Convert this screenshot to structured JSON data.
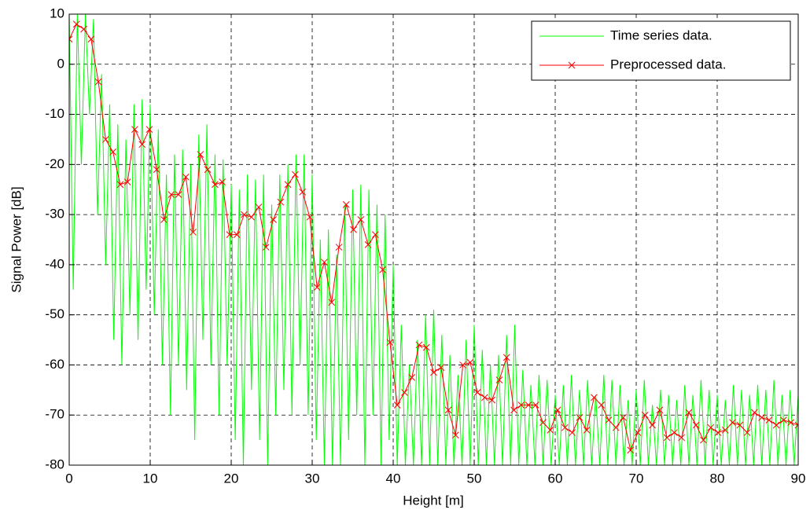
{
  "chart_data": {
    "type": "line",
    "xlabel": "Height [m]",
    "ylabel": "Signal Power [dB]",
    "xlim": [
      0,
      90
    ],
    "ylim": [
      -80,
      10
    ],
    "xticks": [
      0,
      10,
      20,
      30,
      40,
      50,
      60,
      70,
      80,
      90
    ],
    "yticks": [
      -80,
      -70,
      -60,
      -50,
      -40,
      -30,
      -20,
      -10,
      0,
      10
    ],
    "grid": true,
    "legend": "top-right",
    "series": [
      {
        "name": "Time series data.",
        "color": "#00ff00",
        "marker": "none",
        "x": [
          0,
          0.5,
          1,
          1.5,
          2,
          2.5,
          3,
          3.5,
          4,
          4.5,
          5,
          5.5,
          6,
          6.5,
          7,
          7.5,
          8,
          8.5,
          9,
          9.5,
          10,
          10.5,
          11,
          11.5,
          12,
          12.5,
          13,
          13.5,
          14,
          14.5,
          15,
          15.5,
          16,
          16.5,
          17,
          17.5,
          18,
          18.5,
          19,
          19.5,
          20,
          20.5,
          21,
          21.5,
          22,
          22.5,
          23,
          23.5,
          24,
          24.5,
          25,
          25.5,
          26,
          26.5,
          27,
          27.5,
          28,
          28.5,
          29,
          29.5,
          30,
          30.5,
          31,
          31.5,
          32,
          32.5,
          33,
          33.5,
          34,
          34.5,
          35,
          35.5,
          36,
          36.5,
          37,
          37.5,
          38,
          38.5,
          39,
          39.5,
          40,
          40.5,
          41,
          41.5,
          42,
          42.5,
          43,
          43.5,
          44,
          44.5,
          45,
          45.5,
          46,
          46.5,
          47,
          47.5,
          48,
          48.5,
          49,
          49.5,
          50,
          50.5,
          51,
          51.5,
          52,
          52.5,
          53,
          53.5,
          54,
          54.5,
          55,
          55.5,
          56,
          56.5,
          57,
          57.5,
          58,
          58.5,
          59,
          59.5,
          60,
          60.5,
          61,
          61.5,
          62,
          62.5,
          63,
          63.5,
          64,
          64.5,
          65,
          65.5,
          66,
          66.5,
          67,
          67.5,
          68,
          68.5,
          69,
          69.5,
          70,
          70.5,
          71,
          71.5,
          72,
          72.5,
          73,
          73.5,
          74,
          74.5,
          75,
          75.5,
          76,
          76.5,
          77,
          77.5,
          78,
          78.5,
          79,
          79.5,
          80,
          80.5,
          81,
          81.5,
          82,
          82.5,
          83,
          83.5,
          84,
          84.5,
          85,
          85.5,
          86,
          86.5,
          87,
          87.5,
          88,
          88.5,
          89,
          89.5,
          90
        ],
        "values": [
          10,
          -45,
          10,
          -20,
          10,
          -10,
          9,
          -30,
          -2,
          -40,
          -8,
          -55,
          -12,
          -60,
          -15,
          -50,
          -8,
          -55,
          -7,
          -45,
          -8,
          -50,
          -13,
          -60,
          -22,
          -70,
          -18,
          -60,
          -17,
          -65,
          -20,
          -75,
          -14,
          -55,
          -12,
          -60,
          -18,
          -70,
          -19,
          -60,
          -24,
          -75,
          -25,
          -80,
          -22,
          -65,
          -23,
          -75,
          -22,
          -80,
          -28,
          -70,
          -22,
          -65,
          -20,
          -70,
          -18,
          -60,
          -18,
          -70,
          -22,
          -75,
          -35,
          -80,
          -33,
          -80,
          -38,
          -80,
          -28,
          -75,
          -25,
          -70,
          -24,
          -80,
          -25,
          -70,
          -28,
          -80,
          -30,
          -75,
          -40,
          -80,
          -52,
          -80,
          -60,
          -80,
          -55,
          -80,
          -50,
          -80,
          -49,
          -80,
          -54,
          -80,
          -58,
          -80,
          -62,
          -80,
          -55,
          -80,
          -52,
          -80,
          -57,
          -80,
          -60,
          -80,
          -58,
          -80,
          -54,
          -80,
          -52,
          -80,
          -61,
          -80,
          -64,
          -80,
          -62,
          -80,
          -63,
          -80,
          -66,
          -80,
          -64,
          -80,
          -62,
          -80,
          -65,
          -80,
          -63,
          -80,
          -66,
          -80,
          -62,
          -80,
          -63,
          -80,
          -64,
          -80,
          -67,
          -80,
          -65,
          -80,
          -63,
          -80,
          -68,
          -80,
          -65,
          -80,
          -66,
          -80,
          -67,
          -80,
          -64,
          -80,
          -66,
          -80,
          -63,
          -80,
          -65,
          -80,
          -66,
          -80,
          -67,
          -80,
          -64,
          -80,
          -65,
          -80,
          -66,
          -80,
          -64,
          -80,
          -65,
          -80,
          -63,
          -80,
          -66,
          -80,
          -65,
          -80,
          -66
        ]
      },
      {
        "name": "Preprocessed data.",
        "color": "#ff0000",
        "marker": "x",
        "x": [
          0,
          0.9,
          1.8,
          2.7,
          3.6,
          4.5,
          5.4,
          6.3,
          7.2,
          8.1,
          9,
          9.9,
          10.8,
          11.7,
          12.6,
          13.5,
          14.4,
          15.3,
          16.2,
          17.1,
          18,
          18.9,
          19.8,
          20.7,
          21.6,
          22.5,
          23.4,
          24.3,
          25.2,
          26.1,
          27,
          27.9,
          28.8,
          29.7,
          30.6,
          31.5,
          32.4,
          33.3,
          34.2,
          35.1,
          36,
          36.9,
          37.8,
          38.7,
          39.6,
          40.5,
          41.4,
          42.3,
          43.2,
          44.1,
          45,
          45.9,
          46.8,
          47.7,
          48.6,
          49.5,
          50.4,
          51.3,
          52.2,
          53.1,
          54,
          54.9,
          55.8,
          56.7,
          57.6,
          58.5,
          59.4,
          60.3,
          61.2,
          62.1,
          63,
          63.9,
          64.8,
          65.7,
          66.6,
          67.5,
          68.4,
          69.3,
          70.2,
          71.1,
          72,
          72.9,
          73.8,
          74.7,
          75.6,
          76.5,
          77.4,
          78.3,
          79.2,
          80.1,
          81,
          81.9,
          82.8,
          83.7,
          84.6,
          85.5,
          86.4,
          87.3,
          88.2,
          89.1,
          90
        ],
        "values": [
          5,
          8,
          7,
          5,
          -3.5,
          -15,
          -17.5,
          -24,
          -23.5,
          -13,
          -16,
          -13,
          -21,
          -31,
          -26,
          -26,
          -22.5,
          -33.5,
          -18,
          -21,
          -24,
          -23.5,
          -34,
          -34,
          -30,
          -30.5,
          -28.5,
          -36.5,
          -31,
          -27.5,
          -24,
          -22,
          -25.5,
          -30.5,
          -44.5,
          -39.5,
          -47.5,
          -36.5,
          -28,
          -33,
          -31,
          -36,
          -34,
          -41,
          -55.5,
          -68,
          -65.5,
          -62.5,
          -56,
          -56.5,
          -61.5,
          -60.5,
          -69,
          -74,
          -60,
          -59.5,
          -65.5,
          -66.5,
          -67,
          -63,
          -58.5,
          -69,
          -68,
          -68,
          -68,
          -71.5,
          -73,
          -69,
          -72.5,
          -73.5,
          -70.5,
          -73,
          -66.5,
          -68,
          -71,
          -72.5,
          -70.5,
          -77,
          -73.5,
          -70,
          -72,
          -69,
          -74.5,
          -73.5,
          -74.5,
          -69.5,
          -72,
          -75,
          -72.5,
          -73.5,
          -73,
          -71.5,
          -72,
          -73.5,
          -69.5,
          -70.5,
          -71,
          -72,
          -71,
          -71.5,
          -72
        ]
      }
    ]
  }
}
